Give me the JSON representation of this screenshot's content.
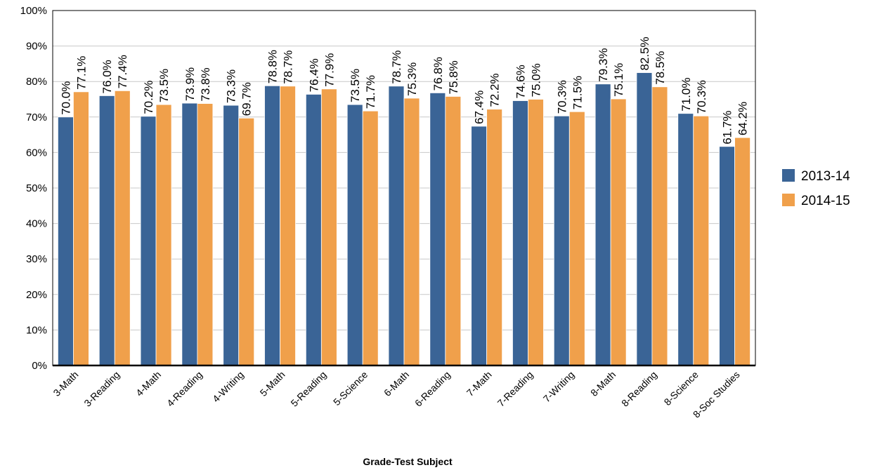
{
  "chart_data": {
    "type": "bar",
    "xlabel": "Grade-Test Subject",
    "categories": [
      "3-Math",
      "3-Reading",
      "4-Math",
      "4-Reading",
      "4-Writing",
      "5-Math",
      "5-Reading",
      "5-Science",
      "6-Math",
      "6-Reading",
      "7-Math",
      "7-Reading",
      "7-Writing",
      "8-Math",
      "8-Reading",
      "8-Science",
      "8-Soc Studies"
    ],
    "series": [
      {
        "name": "2013-14",
        "color": "#3a6496",
        "values": [
          70.0,
          76.0,
          70.2,
          73.9,
          73.3,
          78.8,
          76.4,
          73.5,
          78.7,
          76.8,
          67.4,
          74.6,
          70.3,
          79.3,
          82.5,
          71.0,
          61.7
        ],
        "value_labels": [
          "70.0%",
          "76.0%",
          "70.2%",
          "73.9%",
          "73.3%",
          "78.8%",
          "76.4%",
          "73.5%",
          "78.7%",
          "76.8%",
          "67.4%",
          "74.6%",
          "70.3%",
          "79.3%",
          "82.5%",
          "71.0%",
          "61.7%"
        ]
      },
      {
        "name": "2014-15",
        "color": "#f0a04b",
        "values": [
          77.1,
          77.4,
          73.5,
          73.8,
          69.7,
          78.7,
          77.9,
          71.7,
          75.3,
          75.8,
          72.2,
          75.0,
          71.5,
          75.1,
          78.5,
          70.3,
          64.2
        ],
        "value_labels": [
          "77.1%",
          "77.4%",
          "73.5%",
          "73.8%",
          "69.7%",
          "78.7%",
          "77.9%",
          "71.7%",
          "75.3%",
          "75.8%",
          "72.2%",
          "75.0%",
          "71.5%",
          "75.1%",
          "78.5%",
          "70.3%",
          "64.2%"
        ]
      }
    ],
    "ylim": [
      0,
      100
    ],
    "yticks": [
      {
        "value": 0,
        "label": "0%"
      },
      {
        "value": 10,
        "label": "10%"
      },
      {
        "value": 20,
        "label": "20%"
      },
      {
        "value": 30,
        "label": "30%"
      },
      {
        "value": 40,
        "label": "40%"
      },
      {
        "value": 50,
        "label": "50%"
      },
      {
        "value": 60,
        "label": "60%"
      },
      {
        "value": 70,
        "label": "70%"
      },
      {
        "value": 80,
        "label": "80%"
      },
      {
        "value": 90,
        "label": "90%"
      },
      {
        "value": 100,
        "label": "100%"
      }
    ],
    "grid": true,
    "legend": "right"
  }
}
